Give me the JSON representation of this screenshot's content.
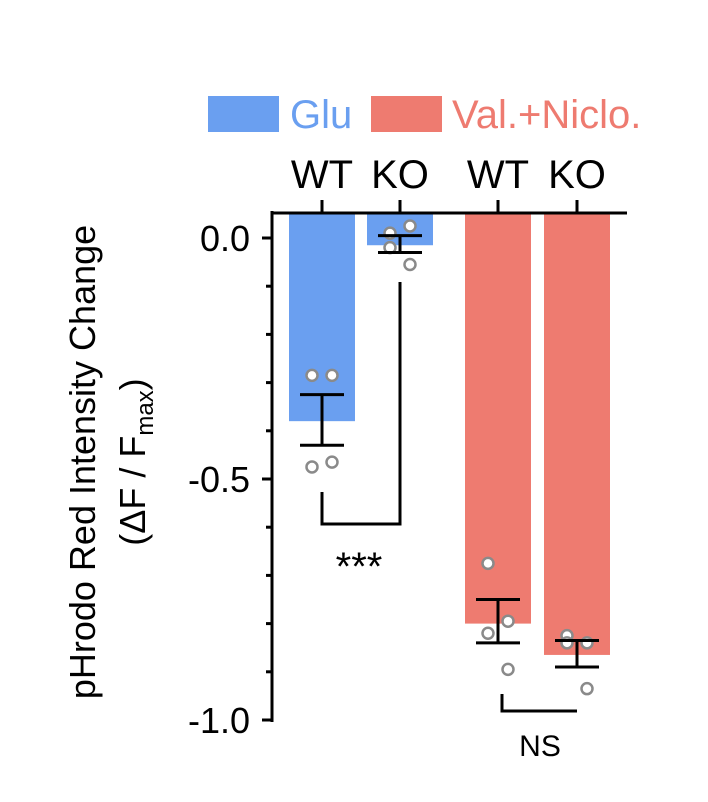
{
  "chart_data": {
    "type": "bar",
    "ylabel_line1": "pHrodo Red Intensity Change",
    "ylabel_line2_prefix": "(ΔF / F",
    "ylabel_line2_sub": "max",
    "ylabel_line2_suffix": ")",
    "ylim": [
      -1.0,
      0.05
    ],
    "yticks": [
      0.0,
      -0.5,
      -1.0
    ],
    "ytick_labels": [
      "0.0",
      "-0.5",
      "-1.0"
    ],
    "legend": [
      {
        "name": "Glu",
        "color": "#6a9ff0"
      },
      {
        "name": "Val.+Niclo.",
        "color": "#ee7b70"
      }
    ],
    "bars": [
      {
        "label": "WT",
        "group": "Glu",
        "value": -0.38,
        "err_low": -0.43,
        "err_high": -0.325,
        "points": [
          -0.285,
          -0.285,
          -0.475,
          -0.465
        ]
      },
      {
        "label": "KO",
        "group": "Glu",
        "value": -0.015,
        "err_low": -0.03,
        "err_high": 0.005,
        "points": [
          0.01,
          0.025,
          -0.02,
          -0.055
        ]
      },
      {
        "label": "WT",
        "group": "Val.+Niclo.",
        "value": -0.8,
        "err_low": -0.84,
        "err_high": -0.75,
        "points": [
          -0.675,
          -0.795,
          -0.82,
          -0.895
        ]
      },
      {
        "label": "KO",
        "group": "Val.+Niclo.",
        "value": -0.865,
        "err_low": -0.89,
        "err_high": -0.835,
        "points": [
          -0.825,
          -0.84,
          -0.84,
          -0.935
        ]
      }
    ],
    "annotations": [
      {
        "text": "***",
        "between": [
          0,
          1
        ]
      },
      {
        "text": "NS",
        "between": [
          2,
          3
        ]
      }
    ]
  }
}
